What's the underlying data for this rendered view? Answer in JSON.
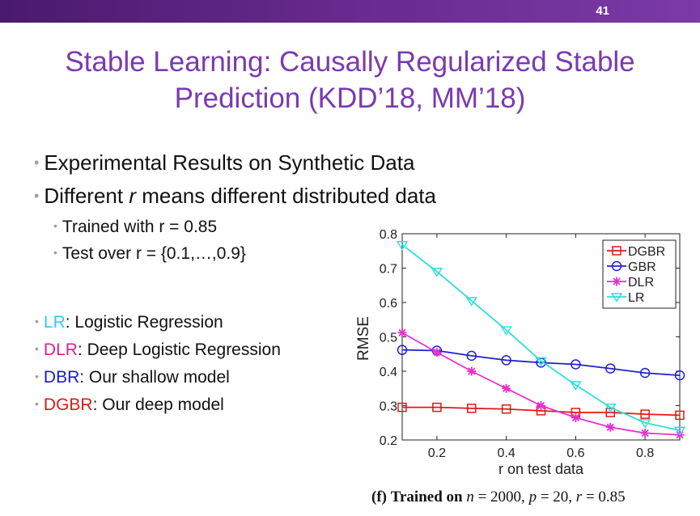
{
  "slide": {
    "number": "41",
    "title_line1": "Stable Learning: Causally Regularized Stable",
    "title_line2": "Prediction (KDD’18, MM’18)"
  },
  "bullets": {
    "b1": "Experimental Results on Synthetic Data",
    "b2_prefix": "Different ",
    "b2_var": "r",
    "b2_suffix": " means different distributed data",
    "sub1": "Trained with r  = 0.85",
    "sub2": "Test over r = {0.1,…,0.9}"
  },
  "legend_text": {
    "lr_abbr": "LR",
    "lr_desc": ": Logistic Regression",
    "dlr_abbr": "DLR",
    "dlr_desc": ": Deep Logistic Regression",
    "dbr_abbr": "DBR",
    "dbr_desc": ": Our shallow model",
    "dgbr_abbr": "DGBR",
    "dgbr_desc": ": Our deep model"
  },
  "caption": {
    "label": "(f)",
    "bold": "Trained on",
    "n": "n",
    "n_eq": " = 2000, ",
    "p": "p",
    "p_eq": " = 20, ",
    "r": "r",
    "r_eq": " = 0.85"
  },
  "colors": {
    "purple_title": "#7a3ab0",
    "lr": "#33ccee",
    "dlr": "#e0208a",
    "dbr": "#1a1acc",
    "dgbr": "#e01818"
  },
  "chart_data": {
    "type": "line",
    "title": "",
    "xlabel": "r on test data",
    "ylabel": "RMSE",
    "xlim": [
      0.1,
      0.9
    ],
    "ylim": [
      0.2,
      0.8
    ],
    "x": [
      0.1,
      0.2,
      0.3,
      0.4,
      0.5,
      0.6,
      0.7,
      0.8,
      0.9
    ],
    "x_ticks": [
      0.2,
      0.4,
      0.6,
      0.8
    ],
    "x_tick_labels": [
      "0.2",
      "0.4",
      "0.6",
      "0.8"
    ],
    "y_ticks": [
      0.2,
      0.3,
      0.4,
      0.5,
      0.6,
      0.7,
      0.8
    ],
    "y_tick_labels": [
      "0.2",
      "0.3",
      "0.4",
      "0.5",
      "0.6",
      "0.7",
      "0.8"
    ],
    "legend_position": "top-right",
    "series": [
      {
        "name": "DGBR",
        "color": "#e01818",
        "marker": "square",
        "values": [
          0.295,
          0.295,
          0.292,
          0.29,
          0.285,
          0.28,
          0.28,
          0.275,
          0.272
        ]
      },
      {
        "name": "GBR",
        "color": "#2020d0",
        "marker": "circle",
        "values": [
          0.462,
          0.46,
          0.445,
          0.432,
          0.425,
          0.42,
          0.408,
          0.395,
          0.388
        ]
      },
      {
        "name": "DLR",
        "color": "#e830d0",
        "marker": "star",
        "values": [
          0.512,
          0.455,
          0.4,
          0.35,
          0.3,
          0.265,
          0.237,
          0.22,
          0.215
        ]
      },
      {
        "name": "LR",
        "color": "#33dddd",
        "marker": "triangle-down",
        "values": [
          0.768,
          0.69,
          0.605,
          0.52,
          0.43,
          0.36,
          0.295,
          0.25,
          0.228
        ]
      }
    ]
  }
}
